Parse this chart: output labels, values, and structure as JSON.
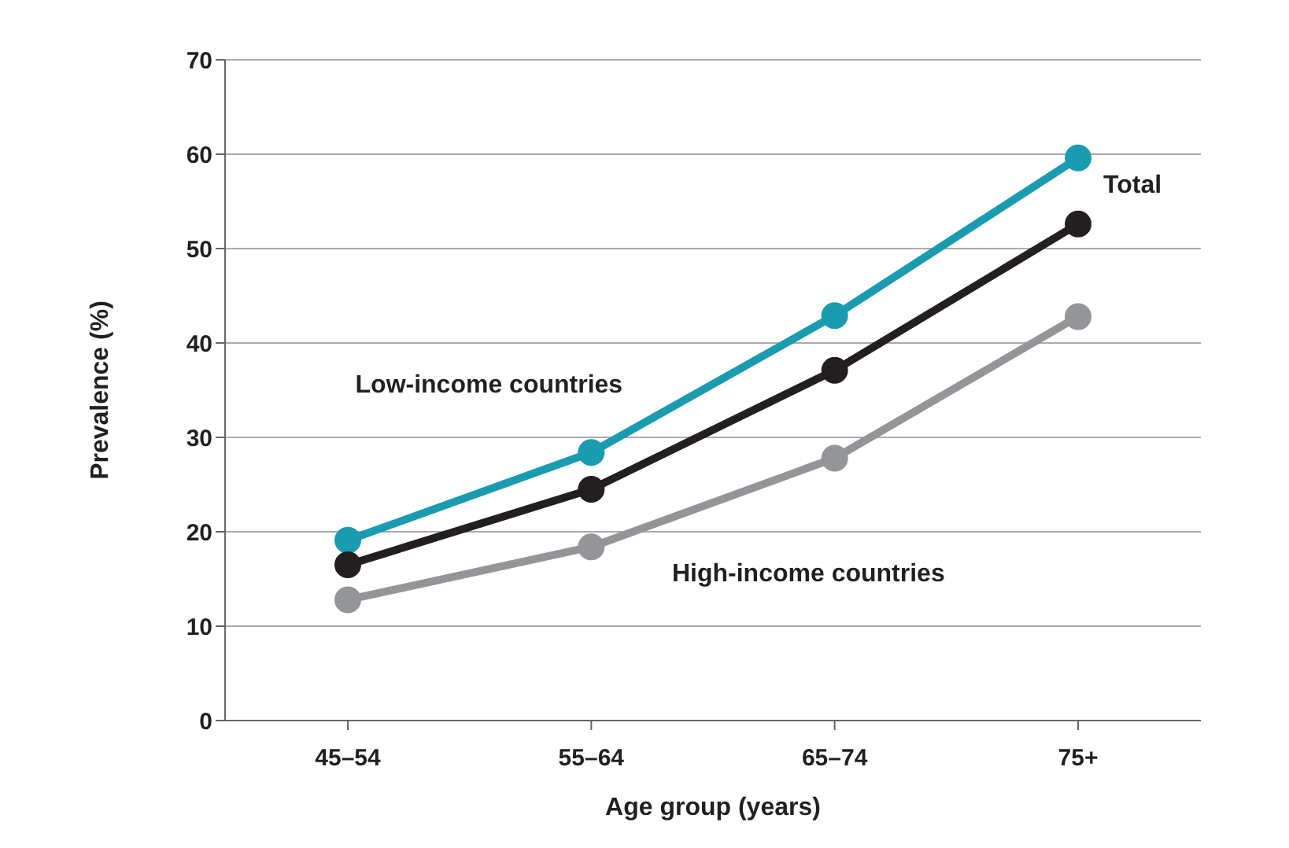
{
  "chart_data": {
    "type": "line",
    "xlabel": "Age group (years)",
    "ylabel": "Prevalence (%)",
    "categories": [
      "45–54",
      "55–64",
      "65–74",
      "75+"
    ],
    "series": [
      {
        "name": "Low-income countries",
        "color": "#1a9bb0",
        "values": [
          19.1,
          28.4,
          42.9,
          59.6
        ]
      },
      {
        "name": "Total",
        "color": "#231f20",
        "values": [
          16.5,
          24.5,
          37.1,
          52.6
        ]
      },
      {
        "name": "High-income countries",
        "color": "#939598",
        "values": [
          12.8,
          18.4,
          27.8,
          42.8
        ]
      }
    ],
    "ylim": [
      0,
      70
    ],
    "yticks": [
      0,
      10,
      20,
      30,
      40,
      50,
      60,
      70
    ],
    "grid": "y",
    "legend": false,
    "marker": "circle",
    "line_style": "solid"
  }
}
